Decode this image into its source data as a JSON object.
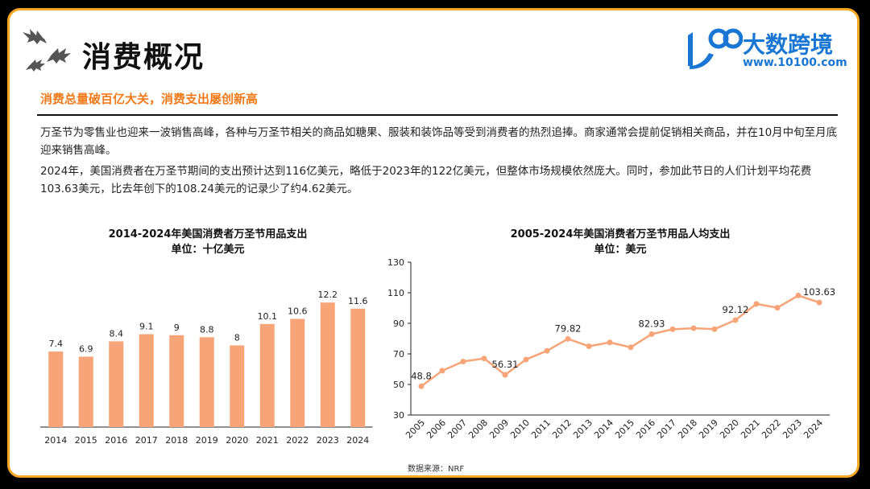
{
  "header": {
    "title": "消费概况",
    "logo_name": "大数跨境",
    "logo_url": "www.10100.com"
  },
  "subtitle": "消费总量破百亿大关，消费支出屡创新高",
  "paragraphs": [
    "万圣节为零售业也迎来一波销售高峰，各种与万圣节相关的商品如糖果、服装和装饰品等受到消费者的热烈追捧。商家通常会提前促销相关商品，并在10月中旬至月底迎来销售高峰。",
    "2024年，美国消费者在万圣节期间的支出预计达到116亿美元，略低于2023年的122亿美元，但整体市场规模依然庞大。同时，参加此节日的人们计划平均花费103.63美元，比去年创下的108.24美元的记录少了约4.62美元。"
  ],
  "source": "数据来源：NRF",
  "colors": {
    "accent": "#f07a1a",
    "border": "#f5a623",
    "bar": "#f7a478",
    "line": "#f7a478",
    "logo": "#1976d2"
  },
  "chart_data": [
    {
      "type": "bar",
      "title": "2014-2024年美国消费者万圣节用品支出",
      "subtitle": "单位：十亿美元",
      "categories": [
        "2014",
        "2015",
        "2016",
        "2017",
        "2018",
        "2019",
        "2020",
        "2021",
        "2022",
        "2023",
        "2024"
      ],
      "values": [
        7.4,
        6.9,
        8.4,
        9.1,
        9,
        8.8,
        8,
        10.1,
        10.6,
        12.2,
        11.6
      ],
      "ylim": [
        0,
        13
      ],
      "grid": false
    },
    {
      "type": "line",
      "title": "2005-2024年美国消费者万圣节用品人均支出",
      "subtitle": "单位：美元",
      "x": [
        "2005",
        "2006",
        "2007",
        "2008",
        "2009",
        "2010",
        "2011",
        "2012",
        "2013",
        "2014",
        "2015",
        "2016",
        "2017",
        "2018",
        "2019",
        "2020",
        "2021",
        "2022",
        "2023",
        "2024"
      ],
      "values": [
        48.8,
        59,
        65,
        67,
        56.31,
        66.3,
        72,
        79.82,
        75,
        77.5,
        74.3,
        82.93,
        86.1,
        86.8,
        86.2,
        92.12,
        102.7,
        100.2,
        108.2,
        103.63
      ],
      "labeled": {
        "2005": "48.8",
        "2009": "56.31",
        "2012": "79.82",
        "2016": "82.93",
        "2020": "92.12",
        "2024": "103.63"
      },
      "yticks": [
        30,
        50,
        70,
        90,
        110,
        130
      ],
      "ylim": [
        30,
        130
      ],
      "grid": false
    }
  ]
}
